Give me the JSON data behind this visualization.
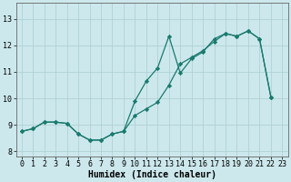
{
  "title": "",
  "xlabel": "Humidex (Indice chaleur)",
  "ylabel": "",
  "background_color": "#cce8ec",
  "line_color": "#1a7a6e",
  "xlim": [
    -0.5,
    23.5
  ],
  "ylim": [
    7.8,
    13.6
  ],
  "yticks": [
    8,
    9,
    10,
    11,
    12,
    13
  ],
  "xticks": [
    0,
    1,
    2,
    3,
    4,
    5,
    6,
    7,
    8,
    9,
    10,
    11,
    12,
    13,
    14,
    15,
    16,
    17,
    18,
    19,
    20,
    21,
    22,
    23
  ],
  "series1_x": [
    0,
    1,
    2,
    3,
    4,
    5,
    6,
    7,
    8,
    9,
    10,
    11,
    12,
    13,
    14,
    15,
    16,
    17,
    18,
    19,
    20,
    21,
    22
  ],
  "series1_y": [
    8.75,
    8.85,
    9.1,
    9.1,
    9.05,
    8.65,
    8.42,
    8.42,
    8.65,
    8.75,
    9.9,
    10.65,
    11.15,
    12.35,
    10.95,
    11.5,
    11.75,
    12.25,
    12.45,
    12.35,
    12.55,
    12.25,
    10.05
  ],
  "series2_x": [
    0,
    1,
    2,
    3,
    4,
    5,
    6,
    7,
    8,
    9,
    10,
    11,
    12,
    13,
    14,
    15,
    16,
    17,
    18,
    19,
    20,
    21,
    22
  ],
  "series2_y": [
    8.75,
    8.85,
    9.1,
    9.1,
    9.05,
    8.65,
    8.42,
    8.42,
    8.65,
    8.75,
    9.35,
    9.6,
    9.85,
    10.5,
    11.3,
    11.55,
    11.8,
    12.15,
    12.45,
    12.35,
    12.55,
    12.25,
    10.05
  ],
  "grid_color": "#aacdd2",
  "tick_fontsize": 6,
  "xlabel_fontsize": 7
}
